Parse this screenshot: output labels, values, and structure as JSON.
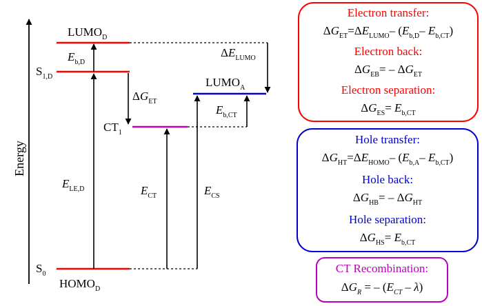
{
  "diagram": {
    "axis_label": "Energy",
    "colors": {
      "red": "#ff0000",
      "blue": "#0000cc",
      "magenta": "#bb00bb",
      "black": "#000000"
    },
    "levels": {
      "lumo_d": {
        "main": "LUMO",
        "sub": "D"
      },
      "s1_d": {
        "main": "S",
        "sub": "1,D"
      },
      "ct1": {
        "main": "CT",
        "sub": "1"
      },
      "lumo_a": {
        "main": "LUMO",
        "sub": "A"
      },
      "s0": {
        "main": "S",
        "sub": "0"
      },
      "homo_d": {
        "main": "HOMO",
        "sub": "D"
      }
    },
    "transitions": {
      "eb_d": {
        "sym": "E",
        "sub": "b,D"
      },
      "dg_et": {
        "pre": "Δ",
        "sym": "G",
        "sub": "ET"
      },
      "de_lumo": {
        "pre": "Δ",
        "sym": "E",
        "sub": "LUMO"
      },
      "eb_ct": {
        "sym": "E",
        "sub": "b,CT"
      },
      "e_le_d": {
        "sym": "E",
        "sub": "LE,D"
      },
      "e_ct": {
        "sym": "E",
        "sub": "CT"
      },
      "e_cs": {
        "sym": "E",
        "sub": "CS"
      }
    }
  },
  "boxes": {
    "electron": {
      "heading1": "Electron transfer:",
      "heading2": "Electron back:",
      "heading3": "Electron separation:"
    },
    "hole": {
      "heading1": "Hole transfer:",
      "heading2": "Hole back:",
      "heading3": "Hole separation:"
    },
    "ct": {
      "heading1": "CT Recombination:"
    }
  }
}
